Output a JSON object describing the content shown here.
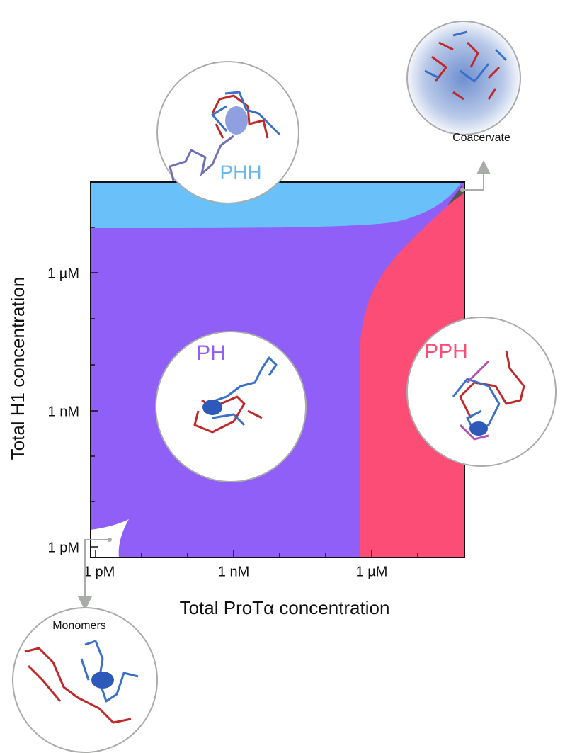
{
  "axes": {
    "x_label": "Total ProTα concentration",
    "y_label": "Total H1 concentration",
    "x_ticks": [
      "1 pM",
      "1 nM",
      "1 µM"
    ],
    "y_ticks": [
      "1 pM",
      "1 nM",
      "1 µM"
    ]
  },
  "regions": {
    "phh": "PHH",
    "ph": "PH",
    "pph": "PPH",
    "monomers": "Monomers",
    "coacervate": "Coacervate"
  }
}
